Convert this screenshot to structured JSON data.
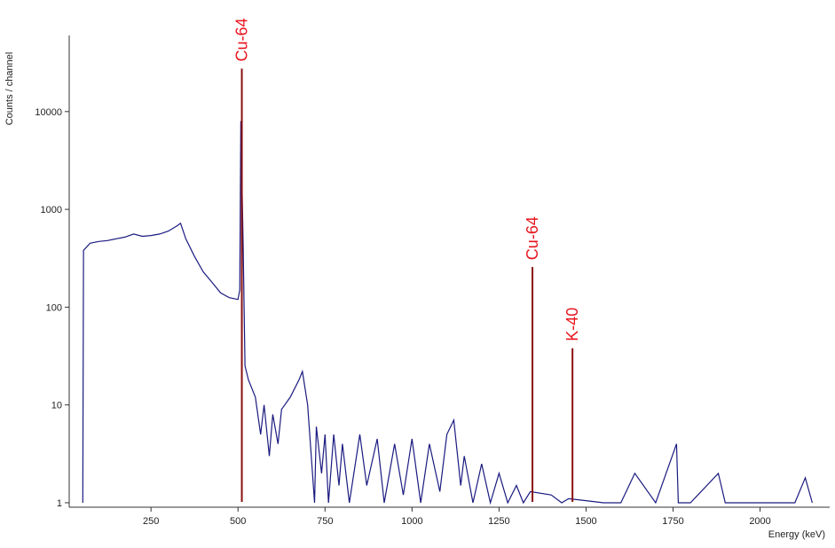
{
  "chart_data": {
    "type": "line",
    "y_label": "Counts / channel",
    "x_label": "Energy (keV)",
    "log_y": true,
    "color": "#1a1a80",
    "x": [
      54,
      56,
      75,
      100,
      125,
      150,
      175,
      200,
      225,
      250,
      275,
      300,
      325,
      335,
      350,
      375,
      400,
      425,
      450,
      475,
      500,
      505,
      508,
      515,
      520,
      530,
      550,
      565,
      575,
      590,
      600,
      615,
      625,
      650,
      675,
      685,
      700,
      720,
      725,
      740,
      750,
      760,
      775,
      790,
      800,
      820,
      850,
      870,
      900,
      920,
      950,
      975,
      1000,
      1025,
      1050,
      1080,
      1100,
      1120,
      1140,
      1150,
      1175,
      1200,
      1225,
      1250,
      1275,
      1300,
      1320,
      1340,
      1400,
      1430,
      1450,
      1500,
      1550,
      1600,
      1640,
      1700,
      1760,
      1765,
      1800,
      1880,
      1900,
      2000,
      2100,
      2130,
      2150
    ],
    "values": [
      1,
      380,
      450,
      470,
      480,
      500,
      520,
      560,
      530,
      540,
      560,
      600,
      680,
      720,
      500,
      330,
      230,
      180,
      140,
      125,
      120,
      150,
      8000,
      400,
      25,
      18,
      12,
      5,
      10,
      3,
      8,
      4,
      9,
      12,
      18,
      22,
      10,
      1,
      6,
      2,
      5,
      1,
      5,
      1.5,
      4,
      1,
      5,
      1.5,
      4.5,
      1,
      4,
      1.2,
      4.5,
      1,
      4,
      1.3,
      5,
      7,
      1.5,
      3,
      1,
      2.5,
      1,
      2,
      1,
      1.5,
      1,
      1.3,
      1.2,
      1,
      1.1,
      1.05,
      1,
      1,
      2,
      1,
      4,
      1,
      1,
      2,
      1,
      1,
      1,
      1.8,
      1
    ],
    "peaks": [
      {
        "label": "Cu-64",
        "x": 511,
        "value": 27500
      },
      {
        "label": "Cu-64",
        "x": 1346,
        "value": 257
      },
      {
        "label": "K-40",
        "x": 1461,
        "value": 38
      }
    ],
    "peak_color": "#e8141e",
    "peak_line_color": "#8b1010",
    "xlim": [
      15,
      2200
    ],
    "ylim": [
      0.9,
      60000
    ],
    "xticks": [
      250,
      500,
      750,
      1000,
      1250,
      1500,
      1750,
      2000
    ],
    "yticks": [
      1,
      10,
      100,
      1000,
      10000
    ]
  }
}
